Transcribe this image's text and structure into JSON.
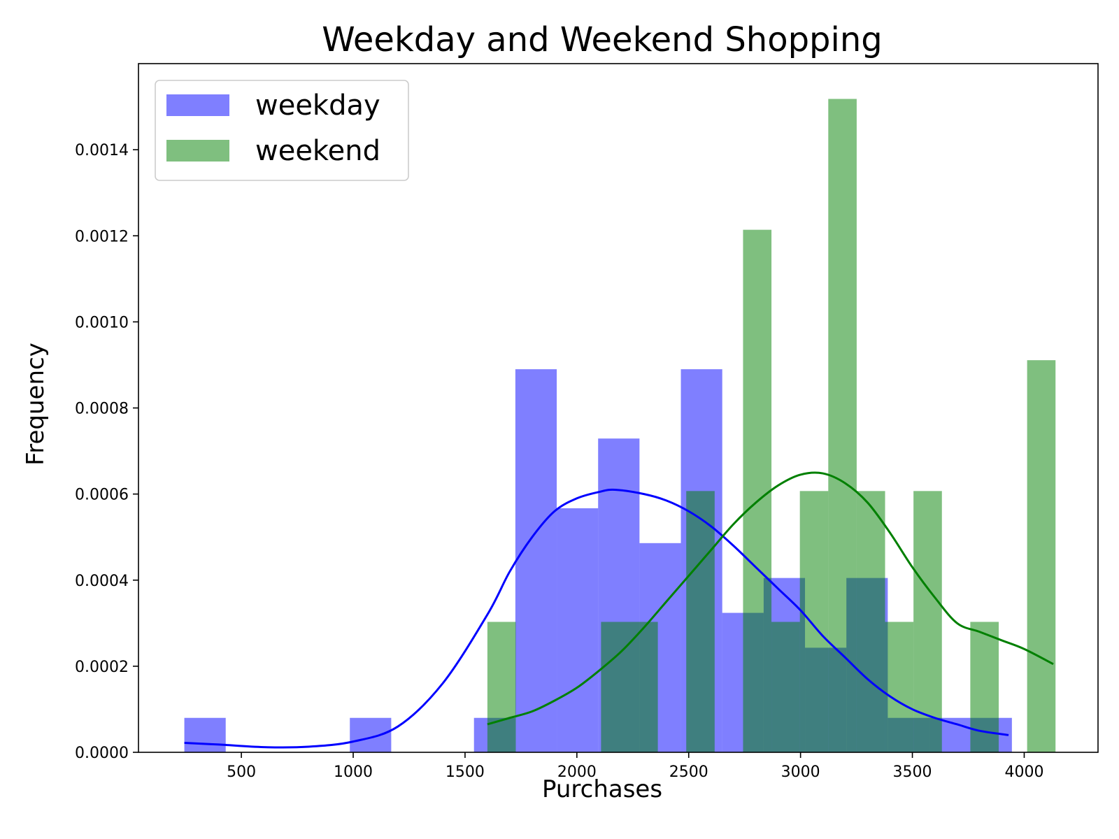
{
  "chart_data": {
    "type": "bar",
    "title": "Weekday and Weekend Shopping",
    "xlabel": "Purchases",
    "ylabel": "Frequency",
    "xlim": [
      40,
      4330
    ],
    "ylim": [
      0,
      0.0016
    ],
    "xticks": [
      500,
      1000,
      1500,
      2000,
      2500,
      3000,
      3500,
      4000
    ],
    "yticks": [
      0.0,
      0.0002,
      0.0004,
      0.0006,
      0.0008,
      0.001,
      0.0012,
      0.0014
    ],
    "xtick_labels": [
      "500",
      "1000",
      "1500",
      "2000",
      "2500",
      "3000",
      "3500",
      "4000"
    ],
    "ytick_labels": [
      "0.0000",
      "0.0002",
      "0.0004",
      "0.0006",
      "0.0008",
      "0.0010",
      "0.0012",
      "0.0014"
    ],
    "grid": false,
    "legend_position": "upper-left",
    "series": [
      {
        "name": "weekday",
        "color": "#0000ff",
        "bin_edges": [
          245,
          430,
          615,
          800,
          985,
          1170,
          1355,
          1540,
          1725,
          1910,
          2095,
          2280,
          2465,
          2650,
          2835,
          3020,
          3205,
          3390,
          3575,
          3760,
          3945
        ],
        "values": [
          8e-05,
          0.0,
          0.0,
          0.0,
          8e-05,
          0.0,
          0.0,
          8e-05,
          0.00089,
          0.000567,
          0.000729,
          0.000486,
          0.00089,
          0.000324,
          0.000405,
          0.000243,
          0.000405,
          8e-05,
          8e-05,
          8e-05
        ],
        "kde_x": [
          245,
          400,
          600,
          800,
          1000,
          1200,
          1400,
          1600,
          1700,
          1800,
          1900,
          2000,
          2100,
          2170,
          2300,
          2400,
          2500,
          2600,
          2700,
          2800,
          2900,
          3000,
          3100,
          3200,
          3300,
          3400,
          3500,
          3600,
          3700,
          3800,
          3930
        ],
        "kde_y": [
          2.2e-05,
          1.8e-05,
          1.2e-05,
          1.3e-05,
          2.5e-05,
          6e-05,
          0.00016,
          0.00032,
          0.00042,
          0.0005,
          0.00056,
          0.00059,
          0.000605,
          0.00061,
          0.0006,
          0.000585,
          0.00056,
          0.000525,
          0.00048,
          0.00043,
          0.00038,
          0.00033,
          0.00027,
          0.00022,
          0.00017,
          0.00013,
          0.0001,
          8e-05,
          6.5e-05,
          5e-05,
          4e-05
        ]
      },
      {
        "name": "weekend",
        "color": "#008000",
        "bin_edges": [
          1600,
          1727,
          1854,
          1981,
          2108,
          2235,
          2362,
          2489,
          2616,
          2743,
          2870,
          2997,
          3124,
          3251,
          3378,
          3505,
          3632,
          3759,
          3886,
          4013,
          4140
        ],
        "values": [
          0.000303,
          0.0,
          0.0,
          0.0,
          0.000303,
          0.000303,
          0.0,
          0.000607,
          0.0,
          0.001214,
          0.000303,
          0.000607,
          0.001518,
          0.000607,
          0.000303,
          0.000607,
          0.0,
          0.000303,
          0.0,
          0.000911
        ],
        "kde_x": [
          1600,
          1700,
          1800,
          1900,
          2000,
          2100,
          2200,
          2300,
          2400,
          2500,
          2600,
          2700,
          2800,
          2900,
          3000,
          3100,
          3200,
          3300,
          3400,
          3500,
          3600,
          3700,
          3800,
          3900,
          4000,
          4130
        ],
        "kde_y": [
          6.5e-05,
          8e-05,
          9.5e-05,
          0.00012,
          0.00015,
          0.00019,
          0.000235,
          0.00029,
          0.00035,
          0.00041,
          0.00047,
          0.00053,
          0.00058,
          0.00062,
          0.000645,
          0.000648,
          0.000625,
          0.00058,
          0.00051,
          0.00043,
          0.00036,
          0.0003,
          0.00028,
          0.00026,
          0.00024,
          0.000205
        ]
      }
    ]
  }
}
